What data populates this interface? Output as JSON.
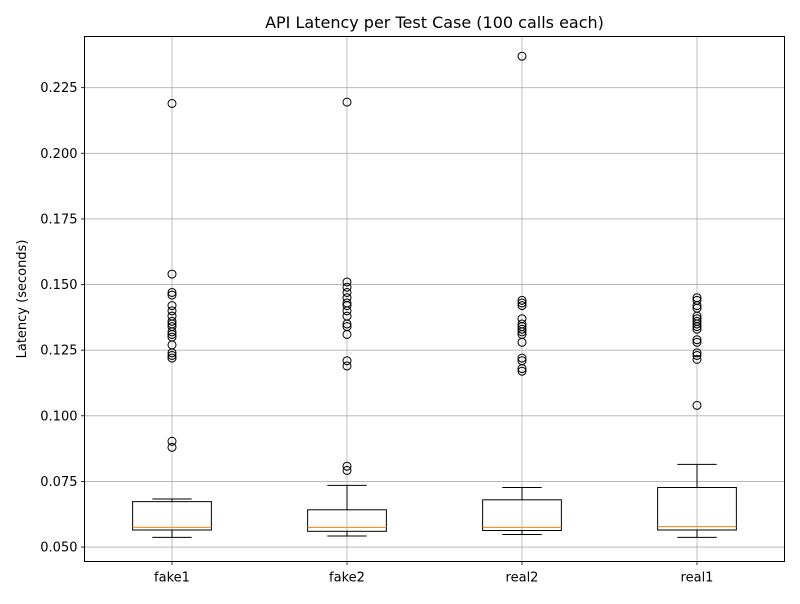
{
  "chart_data": {
    "type": "box",
    "title": "API Latency per Test Case (100 calls each)",
    "xlabel": "",
    "ylabel": "Latency (seconds)",
    "ylim": [
      0.0445,
      0.2445
    ],
    "yticks": [
      0.05,
      0.075,
      0.1,
      0.125,
      0.15,
      0.175,
      0.2,
      0.225
    ],
    "ytick_labels": [
      "0.050",
      "0.075",
      "0.100",
      "0.125",
      "0.150",
      "0.175",
      "0.200",
      "0.225"
    ],
    "grid": true,
    "categories": [
      "fake1",
      "fake2",
      "real2",
      "real1"
    ],
    "boxes": [
      {
        "label": "fake1",
        "whisker_low": 0.0537,
        "q1": 0.0565,
        "median": 0.0575,
        "q3": 0.0673,
        "whisker_high": 0.0683,
        "outliers": [
          0.088,
          0.0903,
          0.122,
          0.123,
          0.124,
          0.127,
          0.13,
          0.131,
          0.132,
          0.134,
          0.135,
          0.136,
          0.138,
          0.14,
          0.142,
          0.146,
          0.147,
          0.154,
          0.219
        ]
      },
      {
        "label": "fake2",
        "whisker_low": 0.0542,
        "q1": 0.056,
        "median": 0.0575,
        "q3": 0.0642,
        "whisker_high": 0.0735,
        "outliers": [
          0.0792,
          0.0808,
          0.119,
          0.121,
          0.131,
          0.134,
          0.135,
          0.138,
          0.14,
          0.142,
          0.143,
          0.145,
          0.147,
          0.149,
          0.151,
          0.2195
        ]
      },
      {
        "label": "real2",
        "whisker_low": 0.0548,
        "q1": 0.0563,
        "median": 0.0575,
        "q3": 0.068,
        "whisker_high": 0.0727,
        "outliers": [
          0.117,
          0.118,
          0.121,
          0.122,
          0.128,
          0.131,
          0.132,
          0.133,
          0.134,
          0.135,
          0.137,
          0.142,
          0.143,
          0.144,
          0.237
        ]
      },
      {
        "label": "real1",
        "whisker_low": 0.0537,
        "q1": 0.0565,
        "median": 0.0578,
        "q3": 0.0727,
        "whisker_high": 0.0815,
        "outliers": [
          0.104,
          0.1215,
          0.123,
          0.124,
          0.128,
          0.129,
          0.133,
          0.134,
          0.135,
          0.136,
          0.137,
          0.138,
          0.141,
          0.142,
          0.144,
          0.145
        ]
      }
    ],
    "colors": {
      "box": "#000000",
      "median": "#ff7f0e",
      "grid": "#b0b0b0",
      "outlier_edge": "#000000"
    }
  }
}
